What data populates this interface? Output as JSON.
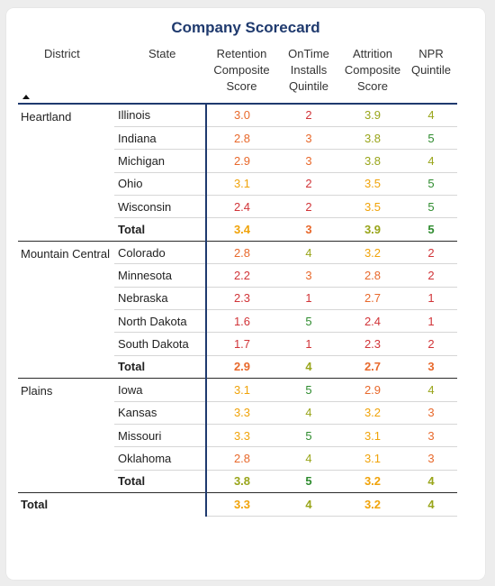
{
  "title": "Company Scorecard",
  "colors": {
    "c1": "#d13438",
    "c2": "#e8692c",
    "c3": "#f0a30a",
    "c4": "#99a51a",
    "c5": "#2e8b2e",
    "header_rule": "#1f3a6e"
  },
  "headers": {
    "district": "District",
    "state": "State",
    "retention": [
      "Retention",
      "Composite",
      "Score"
    ],
    "ontime": [
      "OnTime",
      "Installs",
      "Quintile"
    ],
    "attrition": [
      "Attrition",
      "Composite",
      "Score"
    ],
    "npr": [
      "NPR",
      "Quintile"
    ]
  },
  "sort_icon": "sort-ascending-triangle",
  "groups": [
    {
      "district": "Heartland",
      "rows": [
        {
          "state": "Illinois",
          "retention": "3.0",
          "ontime": "2",
          "attrition": "3.9",
          "npr": "4"
        },
        {
          "state": "Indiana",
          "retention": "2.8",
          "ontime": "3",
          "attrition": "3.8",
          "npr": "5"
        },
        {
          "state": "Michigan",
          "retention": "2.9",
          "ontime": "3",
          "attrition": "3.8",
          "npr": "4"
        },
        {
          "state": "Ohio",
          "retention": "3.1",
          "ontime": "2",
          "attrition": "3.5",
          "npr": "5"
        },
        {
          "state": "Wisconsin",
          "retention": "2.4",
          "ontime": "2",
          "attrition": "3.5",
          "npr": "5"
        }
      ],
      "total": {
        "state": "Total",
        "retention": "3.4",
        "ontime": "3",
        "attrition": "3.9",
        "npr": "5"
      }
    },
    {
      "district": "Mountain Central",
      "rows": [
        {
          "state": "Colorado",
          "retention": "2.8",
          "ontime": "4",
          "attrition": "3.2",
          "npr": "2"
        },
        {
          "state": "Minnesota",
          "retention": "2.2",
          "ontime": "3",
          "attrition": "2.8",
          "npr": "2"
        },
        {
          "state": "Nebraska",
          "retention": "2.3",
          "ontime": "1",
          "attrition": "2.7",
          "npr": "1"
        },
        {
          "state": "North Dakota",
          "retention": "1.6",
          "ontime": "5",
          "attrition": "2.4",
          "npr": "1"
        },
        {
          "state": "South Dakota",
          "retention": "1.7",
          "ontime": "1",
          "attrition": "2.3",
          "npr": "2"
        }
      ],
      "total": {
        "state": "Total",
        "retention": "2.9",
        "ontime": "4",
        "attrition": "2.7",
        "npr": "3"
      }
    },
    {
      "district": "Plains",
      "rows": [
        {
          "state": "Iowa",
          "retention": "3.1",
          "ontime": "5",
          "attrition": "2.9",
          "npr": "4"
        },
        {
          "state": "Kansas",
          "retention": "3.3",
          "ontime": "4",
          "attrition": "3.2",
          "npr": "3"
        },
        {
          "state": "Missouri",
          "retention": "3.3",
          "ontime": "5",
          "attrition": "3.1",
          "npr": "3"
        },
        {
          "state": "Oklahoma",
          "retention": "2.8",
          "ontime": "4",
          "attrition": "3.1",
          "npr": "3"
        }
      ],
      "total": {
        "state": "Total",
        "retention": "3.8",
        "ontime": "5",
        "attrition": "3.2",
        "npr": "4"
      }
    }
  ],
  "grand_total": {
    "label": "Total",
    "retention": "3.3",
    "ontime": "4",
    "attrition": "3.2",
    "npr": "4"
  }
}
